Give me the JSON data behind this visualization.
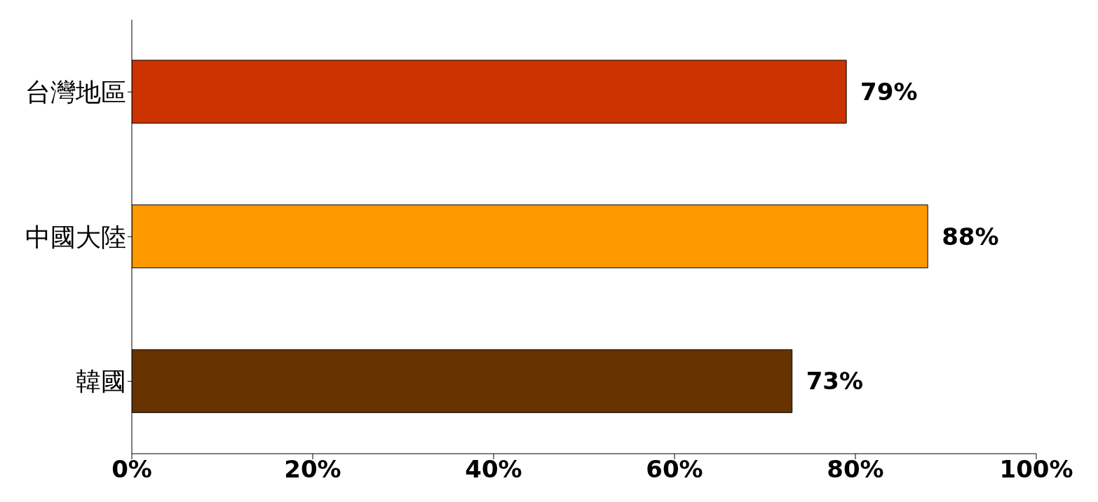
{
  "chart_data": {
    "type": "bar",
    "orientation": "horizontal",
    "categories": [
      "台灣地區",
      "中國大陸",
      "韓國"
    ],
    "values": [
      79,
      88,
      73
    ],
    "colors": [
      "#cc3300",
      "#ff9900",
      "#663300"
    ],
    "value_labels": [
      "79%",
      "88%",
      "73%"
    ],
    "xlim": [
      0,
      100
    ],
    "xticks": [
      {
        "value": 0,
        "label": "0%"
      },
      {
        "value": 20,
        "label": "20%"
      },
      {
        "value": 40,
        "label": "40%"
      },
      {
        "value": 60,
        "label": "60%"
      },
      {
        "value": 80,
        "label": "80%"
      },
      {
        "value": 100,
        "label": "100%"
      }
    ],
    "grid": false,
    "legend": false
  }
}
